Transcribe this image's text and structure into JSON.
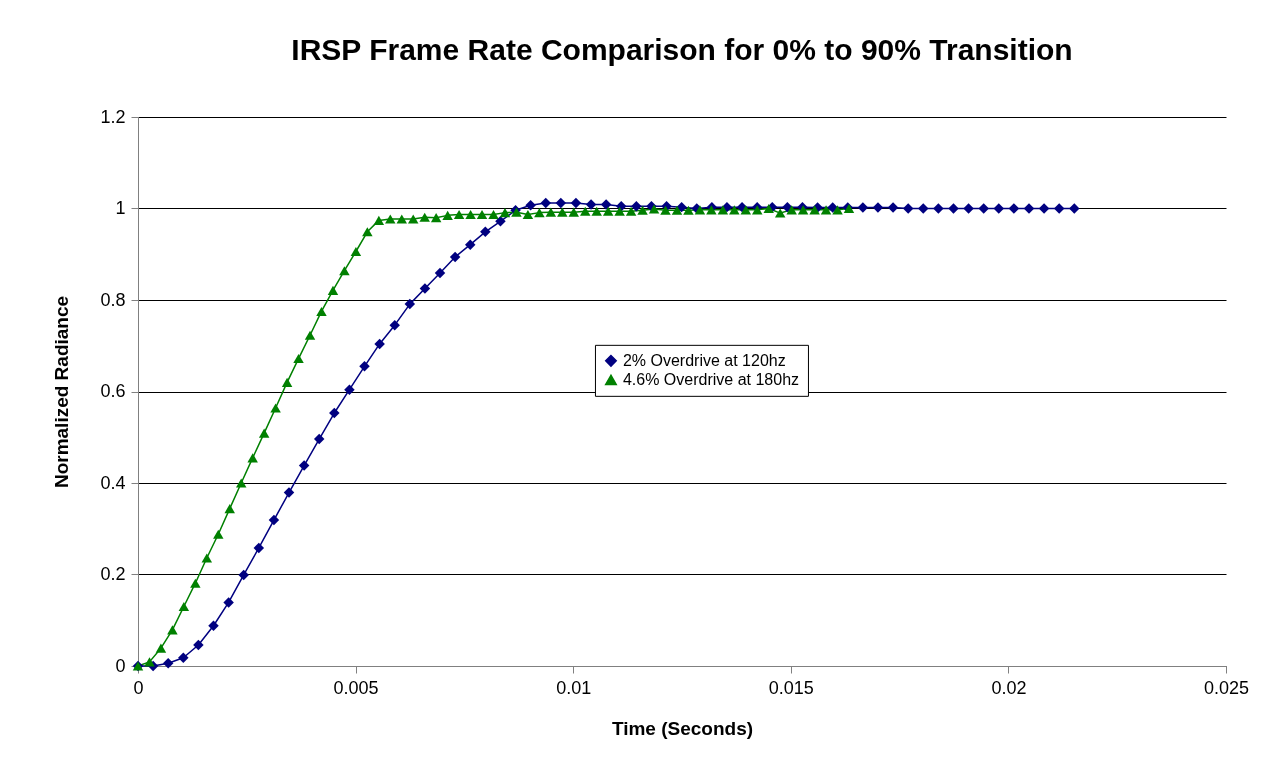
{
  "chart_data": {
    "type": "line",
    "title": "IRSP Frame Rate Comparison for 0% to 90% Transition",
    "xlabel": "Time (Seconds)",
    "ylabel": "Normalized Radiance",
    "xlim": [
      0,
      0.025
    ],
    "xticks": [
      0,
      0.005,
      0.01,
      0.015,
      0.02,
      0.025
    ],
    "ylim": [
      0,
      1.2
    ],
    "yticks": [
      0,
      0.2,
      0.4,
      0.6,
      0.8,
      1,
      1.2
    ],
    "grid": "y",
    "legend": "center",
    "line_style": "solid",
    "series": [
      {
        "name": "2% Overdrive at 120hz",
        "color": "#000080",
        "marker": "diamond",
        "x": [
          0,
          0.000347,
          0.000694,
          0.001041,
          0.001388,
          0.001735,
          0.002082,
          0.002429,
          0.002776,
          0.003123,
          0.00347,
          0.003817,
          0.004164,
          0.004511,
          0.004858,
          0.005205,
          0.005552,
          0.005899,
          0.006246,
          0.006593,
          0.00694,
          0.007287,
          0.007634,
          0.007981,
          0.008328,
          0.008675,
          0.009022,
          0.009369,
          0.009716,
          0.010063,
          0.01041,
          0.010757,
          0.011104,
          0.011451,
          0.011798,
          0.012145,
          0.012492,
          0.012839,
          0.013186,
          0.013533,
          0.01388,
          0.014227,
          0.014574,
          0.014921,
          0.015268,
          0.015615,
          0.015962,
          0.016309,
          0.016656,
          0.017003,
          0.01735,
          0.017697,
          0.018044,
          0.018391,
          0.018738,
          0.019085,
          0.019432,
          0.019779,
          0.020126,
          0.020473,
          0.02082,
          0.021167,
          0.021514
        ],
        "values": [
          0,
          0,
          0.006,
          0.018,
          0.046,
          0.088,
          0.139,
          0.199,
          0.258,
          0.319,
          0.379,
          0.438,
          0.496,
          0.553,
          0.604,
          0.655,
          0.704,
          0.745,
          0.791,
          0.825,
          0.859,
          0.894,
          0.921,
          0.949,
          0.972,
          0.996,
          1.007,
          1.012,
          1.012,
          1.012,
          1.009,
          1.009,
          1.005,
          1.005,
          1.005,
          1.005,
          1.003,
          1.0,
          1.003,
          1.003,
          1.003,
          1.003,
          1.003,
          1.003,
          1.003,
          1.002,
          1.002,
          1.002,
          1.002,
          1.002,
          1.002,
          1.0,
          1.0,
          1.0,
          1.0,
          1.0,
          1.0,
          1.0,
          1.0,
          1.0,
          1.0,
          1.0,
          1.0
        ]
      },
      {
        "name": "4.6% Overdrive at 180hz",
        "color": "#008000",
        "marker": "triangle",
        "x": [
          0,
          0.000264,
          0.000527,
          0.000791,
          0.001054,
          0.001318,
          0.001581,
          0.001845,
          0.002108,
          0.002372,
          0.002635,
          0.002899,
          0.003162,
          0.003426,
          0.003689,
          0.003953,
          0.004216,
          0.00448,
          0.004743,
          0.005007,
          0.00527,
          0.005534,
          0.005797,
          0.006061,
          0.006324,
          0.006588,
          0.006851,
          0.007115,
          0.007378,
          0.007642,
          0.007905,
          0.008169,
          0.008432,
          0.008696,
          0.008959,
          0.009223,
          0.009486,
          0.00975,
          0.010013,
          0.010277,
          0.01054,
          0.010804,
          0.011067,
          0.011331,
          0.011594,
          0.011858,
          0.012121,
          0.012385,
          0.012648,
          0.012912,
          0.013175,
          0.013439,
          0.013702,
          0.013966,
          0.014229,
          0.014493,
          0.014756,
          0.01502,
          0.015283,
          0.015547,
          0.01581,
          0.016074,
          0.016337
        ],
        "values": [
          0,
          0.009,
          0.039,
          0.079,
          0.13,
          0.181,
          0.236,
          0.288,
          0.344,
          0.4,
          0.455,
          0.509,
          0.564,
          0.62,
          0.672,
          0.723,
          0.775,
          0.821,
          0.864,
          0.906,
          0.949,
          0.974,
          0.977,
          0.977,
          0.977,
          0.981,
          0.98,
          0.985,
          0.987,
          0.987,
          0.987,
          0.987,
          0.991,
          0.992,
          0.987,
          0.991,
          0.992,
          0.992,
          0.992,
          0.994,
          0.994,
          0.994,
          0.994,
          0.994,
          0.996,
          0.999,
          0.996,
          0.996,
          0.996,
          0.997,
          0.997,
          0.997,
          0.997,
          0.997,
          0.997,
          1.0,
          0.99,
          0.997,
          0.997,
          0.997,
          0.997,
          0.997,
          1.0
        ]
      }
    ]
  }
}
